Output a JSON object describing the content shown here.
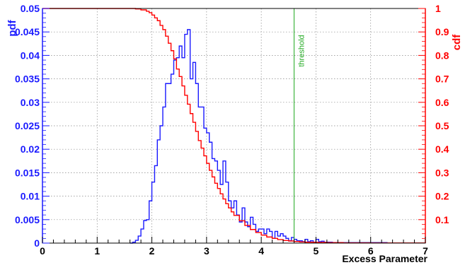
{
  "chart_data": {
    "type": "line",
    "xlabel": "Excess Parameter",
    "ylabel_left": "pdf",
    "ylabel_right": "cdf",
    "xlim": [
      0,
      7
    ],
    "ylim_left": [
      0,
      0.05
    ],
    "ylim_right": [
      0,
      1
    ],
    "x_ticks": [
      "0",
      "1",
      "2",
      "3",
      "4",
      "5",
      "6",
      "7"
    ],
    "left_ticks": [
      "0",
      "0.005",
      "0.01",
      "0.015",
      "0.02",
      "0.025",
      "0.03",
      "0.035",
      "0.04",
      "0.045",
      "0.05"
    ],
    "right_ticks": [
      "0.1",
      "0.2",
      "0.3",
      "0.4",
      "0.5",
      "0.6",
      "0.7",
      "0.8",
      "0.9",
      "1"
    ],
    "grid": true,
    "series": [
      {
        "color": "#1a1aff",
        "axis": "left",
        "style": "histogram",
        "x": [
          1.6,
          1.65,
          1.7,
          1.75,
          1.8,
          1.85,
          1.9,
          1.95,
          2.0,
          2.05,
          2.1,
          2.15,
          2.2,
          2.25,
          2.3,
          2.35,
          2.4,
          2.45,
          2.5,
          2.55,
          2.6,
          2.65,
          2.7,
          2.75,
          2.8,
          2.85,
          2.9,
          2.95,
          3.0,
          3.05,
          3.1,
          3.15,
          3.2,
          3.25,
          3.3,
          3.35,
          3.4,
          3.45,
          3.5,
          3.55,
          3.6,
          3.65,
          3.7,
          3.75,
          3.8,
          3.85,
          3.9,
          3.95,
          4.0,
          4.05,
          4.1,
          4.15,
          4.2,
          4.25,
          4.3,
          4.35,
          4.4,
          4.45,
          4.5,
          4.55,
          4.6,
          4.65,
          4.7,
          4.75,
          4.8,
          4.85,
          4.9,
          4.95,
          5.0,
          5.05,
          5.1,
          5.15,
          5.2,
          5.3,
          5.4,
          5.6,
          5.8,
          6.0,
          6.2
        ],
        "y": [
          0,
          0.0002,
          0.0006,
          0.0015,
          0.003,
          0.0048,
          0.005,
          0.009,
          0.013,
          0.0165,
          0.022,
          0.025,
          0.029,
          0.034,
          0.034,
          0.036,
          0.039,
          0.0395,
          0.042,
          0.0395,
          0.0445,
          0.0455,
          0.035,
          0.0385,
          0.034,
          0.029,
          0.029,
          0.0245,
          0.0235,
          0.0215,
          0.018,
          0.0175,
          0.0155,
          0.0125,
          0.0175,
          0.013,
          0.009,
          0.0075,
          0.009,
          0.006,
          0.0045,
          0.0075,
          0.0045,
          0.0035,
          0.0055,
          0.004,
          0.0025,
          0.003,
          0.003,
          0.002,
          0.003,
          0.0025,
          0.001,
          0.0025,
          0.0015,
          0.002,
          0.0015,
          0.001,
          0.0005,
          0.0012,
          0.0008,
          0.0005,
          0.0005,
          0.0003,
          0.0008,
          0.0003,
          0.0005,
          0.0002,
          0.0008,
          0.0003,
          0.0004,
          0.0002,
          0.0002,
          0.0001,
          0.0001,
          0.0001,
          0.0001,
          0.0001,
          0.0001
        ]
      },
      {
        "color": "#ff0000",
        "axis": "right",
        "style": "step",
        "x": [
          0,
          1.7,
          1.8,
          1.9,
          1.95,
          2.0,
          2.05,
          2.1,
          2.15,
          2.2,
          2.25,
          2.3,
          2.35,
          2.4,
          2.45,
          2.5,
          2.55,
          2.6,
          2.65,
          2.7,
          2.75,
          2.8,
          2.85,
          2.9,
          2.95,
          3.0,
          3.05,
          3.1,
          3.15,
          3.2,
          3.25,
          3.3,
          3.35,
          3.4,
          3.45,
          3.5,
          3.6,
          3.7,
          3.8,
          3.9,
          4.0,
          4.1,
          4.2,
          4.3,
          4.4,
          4.5,
          4.6,
          4.7,
          4.8,
          5.0,
          5.2,
          5.5,
          6.0,
          7.0
        ],
        "y": [
          1.0,
          0.998,
          0.994,
          0.988,
          0.982,
          0.972,
          0.96,
          0.948,
          0.928,
          0.91,
          0.882,
          0.852,
          0.82,
          0.785,
          0.742,
          0.71,
          0.67,
          0.63,
          0.592,
          0.552,
          0.515,
          0.476,
          0.437,
          0.405,
          0.372,
          0.34,
          0.31,
          0.282,
          0.255,
          0.233,
          0.21,
          0.188,
          0.168,
          0.15,
          0.133,
          0.118,
          0.095,
          0.075,
          0.058,
          0.045,
          0.034,
          0.026,
          0.02,
          0.015,
          0.011,
          0.009,
          0.007,
          0.005,
          0.004,
          0.003,
          0.002,
          0.001,
          0.0005,
          0.0
        ]
      }
    ],
    "annotations": [
      {
        "text": "threshold",
        "x": 4.6,
        "color": "#22aa22"
      }
    ]
  }
}
